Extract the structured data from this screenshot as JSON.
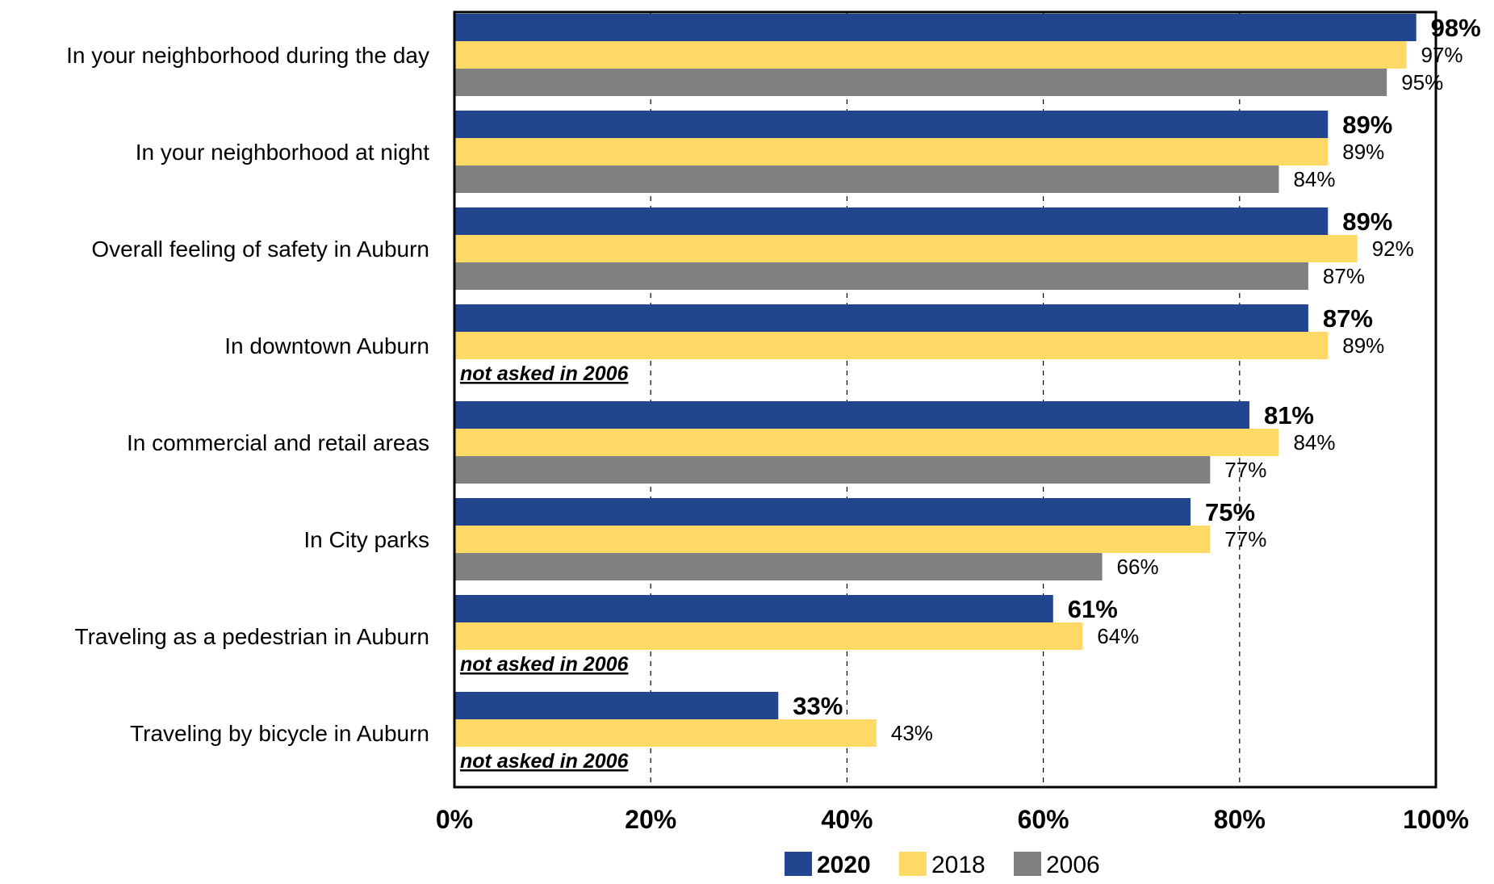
{
  "chart_data": {
    "type": "bar",
    "orientation": "horizontal",
    "categories": [
      "In your neighborhood during the day",
      "In your neighborhood at night",
      "Overall feeling of safety in Auburn",
      "In downtown Auburn",
      "In commercial and retail areas",
      "In City parks",
      "Traveling as a pedestrian in Auburn",
      "Traveling by bicycle in Auburn"
    ],
    "series": [
      {
        "name": "2020",
        "color": "#21468F",
        "bold": true,
        "values": [
          98,
          89,
          89,
          87,
          81,
          75,
          61,
          33
        ]
      },
      {
        "name": "2018",
        "color": "#FFD966",
        "bold": false,
        "values": [
          97,
          89,
          92,
          89,
          84,
          77,
          64,
          43
        ]
      },
      {
        "name": "2006",
        "color": "#808080",
        "bold": false,
        "values": [
          95,
          84,
          87,
          null,
          77,
          66,
          null,
          null
        ]
      }
    ],
    "value_suffix": "%",
    "missing_note": "not asked in 2006",
    "xlim": [
      0,
      100
    ],
    "xticks": [
      0,
      20,
      40,
      60,
      80,
      100
    ],
    "xtick_labels": [
      "0%",
      "20%",
      "40%",
      "60%",
      "80%",
      "100%"
    ],
    "grid": "vertical dashed",
    "legend": "bottom"
  }
}
